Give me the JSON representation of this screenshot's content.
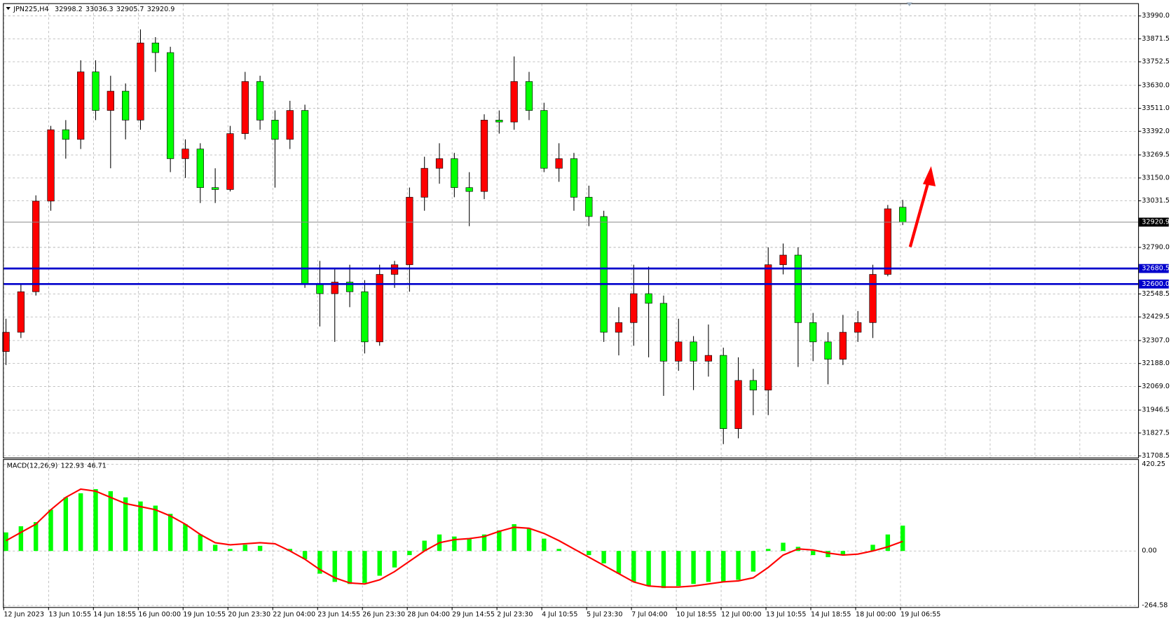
{
  "chart_data": [
    {
      "type": "candlestick",
      "title": "JPN225,H4",
      "candles": [
        [
          32250,
          32420,
          32180,
          32350
        ],
        [
          32350,
          32600,
          32320,
          32560
        ],
        [
          32560,
          33060,
          32540,
          33030
        ],
        [
          33030,
          33420,
          32980,
          33400
        ],
        [
          33400,
          33450,
          33250,
          33350
        ],
        [
          33350,
          33760,
          33300,
          33700
        ],
        [
          33700,
          33760,
          33450,
          33500
        ],
        [
          33500,
          33680,
          33200,
          33600
        ],
        [
          33600,
          33640,
          33350,
          33450
        ],
        [
          33450,
          33920,
          33400,
          33850
        ],
        [
          33850,
          33880,
          33700,
          33800
        ],
        [
          33800,
          33830,
          33180,
          33250
        ],
        [
          33250,
          33350,
          33150,
          33300
        ],
        [
          33300,
          33330,
          33020,
          33100
        ],
        [
          33100,
          33200,
          33020,
          33090
        ],
        [
          33090,
          33420,
          33080,
          33380
        ],
        [
          33380,
          33700,
          33350,
          33650
        ],
        [
          33650,
          33680,
          33400,
          33450
        ],
        [
          33450,
          33500,
          33100,
          33350
        ],
        [
          33350,
          33550,
          33300,
          33500
        ],
        [
          33500,
          33530,
          32580,
          32600
        ],
        [
          32600,
          32720,
          32380,
          32550
        ],
        [
          32550,
          32680,
          32300,
          32610
        ],
        [
          32610,
          32700,
          32480,
          32560
        ],
        [
          32560,
          32620,
          32240,
          32300
        ],
        [
          32300,
          32700,
          32280,
          32650
        ],
        [
          32650,
          32720,
          32580,
          32700
        ],
        [
          32700,
          33100,
          32560,
          33050
        ],
        [
          33050,
          33260,
          32980,
          33200
        ],
        [
          33200,
          33330,
          33120,
          33250
        ],
        [
          33250,
          33280,
          33050,
          33100
        ],
        [
          33100,
          33180,
          32900,
          33080
        ],
        [
          33080,
          33480,
          33040,
          33450
        ],
        [
          33450,
          33500,
          33380,
          33440
        ],
        [
          33440,
          33780,
          33400,
          33650
        ],
        [
          33650,
          33700,
          33450,
          33500
        ],
        [
          33500,
          33540,
          33180,
          33200
        ],
        [
          33200,
          33330,
          33130,
          33250
        ],
        [
          33250,
          33280,
          32980,
          33050
        ],
        [
          33050,
          33110,
          32900,
          32950
        ],
        [
          32950,
          32980,
          32300,
          32350
        ],
        [
          32350,
          32480,
          32230,
          32400
        ],
        [
          32400,
          32700,
          32280,
          32550
        ],
        [
          32550,
          32690,
          32220,
          32500
        ],
        [
          32500,
          32540,
          32020,
          32200
        ],
        [
          32200,
          32420,
          32150,
          32300
        ],
        [
          32300,
          32330,
          32050,
          32200
        ],
        [
          32200,
          32390,
          32120,
          32230
        ],
        [
          32230,
          32270,
          31770,
          31850
        ],
        [
          31850,
          32220,
          31800,
          32100
        ],
        [
          32100,
          32160,
          31920,
          32050
        ],
        [
          32050,
          32790,
          31920,
          32700
        ],
        [
          32700,
          32810,
          32650,
          32750
        ],
        [
          32750,
          32790,
          32170,
          32400
        ],
        [
          32400,
          32450,
          32200,
          32300
        ],
        [
          32300,
          32350,
          32080,
          32210
        ],
        [
          32210,
          32440,
          32180,
          32350
        ],
        [
          32350,
          32460,
          32300,
          32400
        ],
        [
          32400,
          32700,
          32320,
          32650
        ],
        [
          32650,
          33010,
          32640,
          32990
        ],
        [
          32998.2,
          33036.3,
          32905.7,
          32920.9
        ]
      ],
      "up_color": "#ff0000",
      "down_color": "#00ff00",
      "levels": [
        32680.5,
        {
          "value": 32600,
          "label": "32600.0"
        }
      ],
      "level_color": "#0000cc",
      "ylim": [
        31700,
        34052
      ],
      "yticks": [
        {
          "value": 33990,
          "label": "33990.0"
        },
        33871.5,
        33752.5,
        {
          "value": 33630,
          "label": "33630.0"
        },
        {
          "value": 33511,
          "label": "33511.0"
        },
        {
          "value": 33392,
          "label": "33392.0"
        },
        33269.5,
        {
          "value": 33150,
          "label": "33150.0"
        },
        33031.5,
        {
          "value": 32790,
          "label": "32790.0"
        },
        32548.5,
        32429.5,
        {
          "value": 32307,
          "label": "32307.0"
        },
        {
          "value": 32188,
          "label": "32188.0"
        },
        {
          "value": 32069,
          "label": "32069.0"
        },
        31946.5,
        31827.5,
        31708.5
      ],
      "grid": true
    },
    {
      "type": "macd",
      "title": "MACD(12,26,9)",
      "histogram": [
        90,
        120,
        140,
        200,
        260,
        280,
        300,
        290,
        260,
        240,
        220,
        180,
        130,
        80,
        30,
        10,
        30,
        25,
        0,
        10,
        -40,
        -110,
        -150,
        -160,
        -155,
        -120,
        -80,
        -20,
        50,
        80,
        70,
        60,
        80,
        100,
        130,
        110,
        60,
        10,
        0,
        -20,
        -60,
        -110,
        -150,
        -170,
        -180,
        -170,
        -160,
        -150,
        -150,
        -140,
        -100,
        10,
        40,
        20,
        -20,
        -30,
        -20,
        0,
        30,
        80,
        122.93
      ],
      "signal": [
        50,
        90,
        130,
        200,
        260,
        300,
        290,
        260,
        230,
        215,
        200,
        170,
        130,
        80,
        40,
        30,
        35,
        40,
        35,
        0,
        -40,
        -90,
        -130,
        -155,
        -160,
        -140,
        -100,
        -50,
        0,
        40,
        55,
        60,
        70,
        95,
        115,
        110,
        85,
        50,
        10,
        -30,
        -70,
        -110,
        -150,
        -170,
        -175,
        -175,
        -170,
        -160,
        -150,
        -145,
        -130,
        -80,
        -20,
        10,
        5,
        -10,
        -20,
        -15,
        0,
        20,
        46.71
      ],
      "histogram_color": "#00ff00",
      "signal_color": "#ff0000",
      "ylim": [
        -272,
        442
      ],
      "yticks": [
        420.25,
        {
          "value": 0,
          "label": "0.00"
        },
        -264.58
      ],
      "x_labels": [
        "12 Jun 2023",
        "13 Jun 10:55",
        "14 Jun 18:55",
        "16 Jun 00:00",
        "19 Jun 10:55",
        "20 Jun 23:30",
        "22 Jun 04:00",
        "23 Jun 14:55",
        "26 Jun 23:30",
        "28 Jun 04:00",
        "29 Jun 14:55",
        "2 Jul 23:30",
        "4 Jul 10:55",
        "5 Jul 23:30",
        "7 Jul 04:00",
        "10 Jul 18:55",
        "12 Jul 00:00",
        "13 Jul 10:55",
        "14 Jul 18:55",
        "18 Jul 00:00",
        "19 Jul 06:55"
      ],
      "grid": true
    }
  ]
}
